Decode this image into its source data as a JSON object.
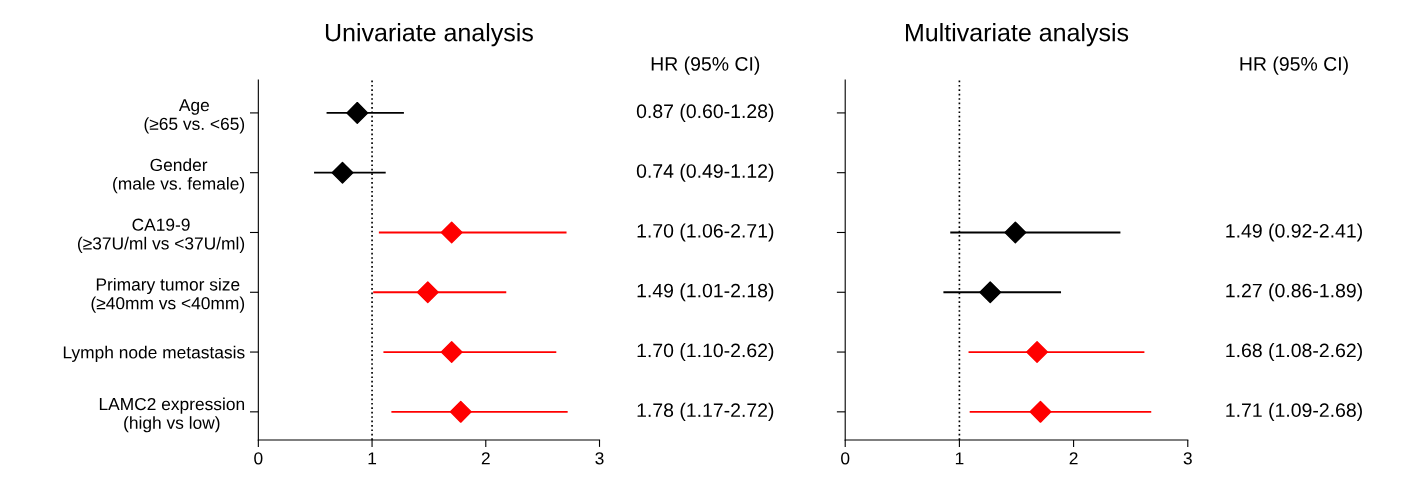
{
  "chart_data": [
    {
      "type": "scatter",
      "orientation": "horizontal",
      "title": "Univariate analysis",
      "categories": [
        "Age\n(≥65 vs. <65)",
        "Gender\n(male vs. female)",
        "CA19-9\n(≥37U/ml vs <37U/ml)",
        "Primary tumor size\n(≥40mm vs <40mm)",
        "Lymph node metastasis",
        "LAMC2 expression\n(high vs low)"
      ],
      "values": [
        0.87,
        0.74,
        1.7,
        1.49,
        1.7,
        1.78
      ],
      "errors": [
        [
          0.6,
          1.28
        ],
        [
          0.49,
          1.12
        ],
        [
          1.06,
          2.71
        ],
        [
          1.01,
          2.18
        ],
        [
          1.1,
          2.62
        ],
        [
          1.17,
          2.72
        ]
      ],
      "colors": [
        "#000000",
        "#000000",
        "#ff0000",
        "#ff0000",
        "#ff0000",
        "#ff0000"
      ],
      "value_labels": [
        "0.87 (0.60-1.28)",
        "0.74 (0.49-1.12)",
        "1.70 (1.06-2.71)",
        "1.49 (1.01-2.18)",
        "1.70 (1.10-2.62)",
        "1.78 (1.17-2.72)"
      ],
      "annotations": [
        "HR (95% CI)"
      ],
      "xlim": [
        0,
        3
      ],
      "xticks": [
        0,
        1,
        2,
        3
      ],
      "marker": "diamond",
      "grid": false,
      "legend": false,
      "ref_lines": [
        {
          "axis": "x",
          "value": 1,
          "label": null,
          "color": "#000000",
          "line_style": "dotted"
        }
      ]
    },
    {
      "type": "scatter",
      "orientation": "horizontal",
      "title": "Multivariate analysis",
      "categories": [
        null,
        null,
        null,
        null,
        null,
        null
      ],
      "values": [
        null,
        null,
        1.49,
        1.27,
        1.68,
        1.71
      ],
      "errors": [
        null,
        null,
        [
          0.92,
          2.41
        ],
        [
          0.86,
          1.89
        ],
        [
          1.08,
          2.62
        ],
        [
          1.09,
          2.68
        ]
      ],
      "colors": [
        "#000000",
        "#000000",
        "#000000",
        "#000000",
        "#ff0000",
        "#ff0000"
      ],
      "value_labels": [
        null,
        null,
        "1.49 (0.92-2.41)",
        "1.27 (0.86-1.89)",
        "1.68 (1.08-2.62)",
        "1.71 (1.09-2.68)"
      ],
      "annotations": [
        "HR (95% CI)"
      ],
      "xlim": [
        0,
        3
      ],
      "xticks": [
        0,
        1,
        2,
        3
      ],
      "marker": "diamond",
      "grid": false,
      "legend": false,
      "tick_labels": "x",
      "ref_lines": [
        {
          "axis": "x",
          "value": 1,
          "label": null,
          "color": "#000000",
          "line_style": "dotted"
        }
      ]
    }
  ]
}
